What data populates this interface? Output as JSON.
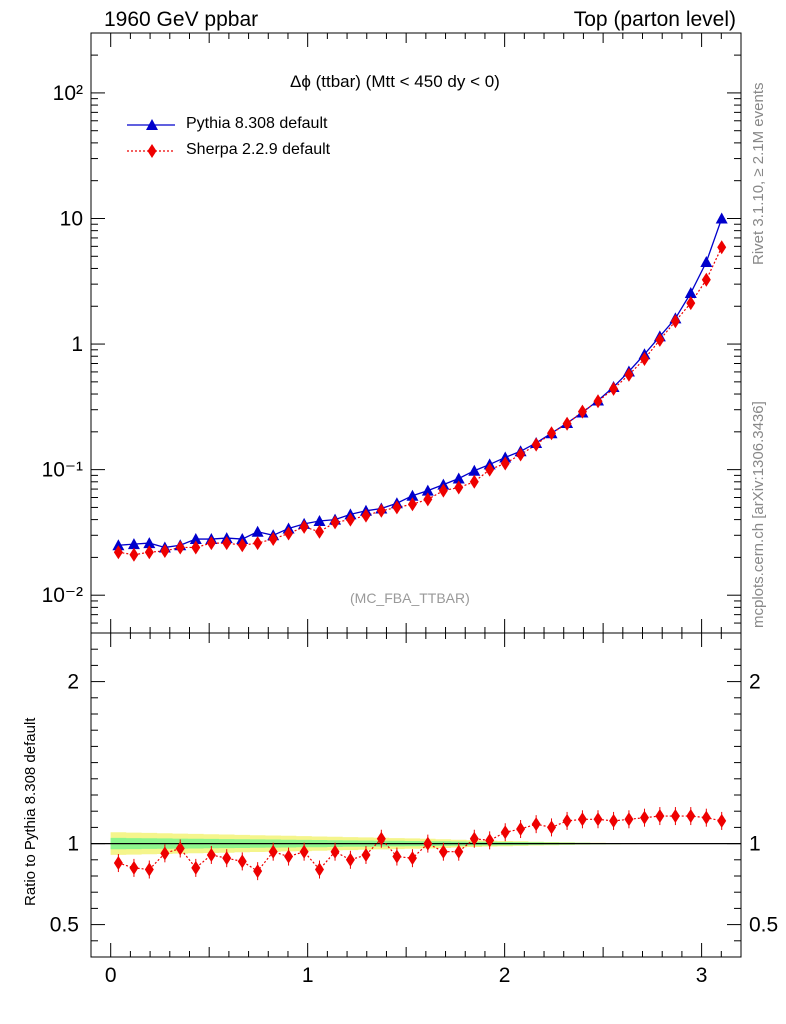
{
  "header": {
    "left_title": "1960 GeV ppbar",
    "right_title": "Top (parton level)"
  },
  "side_text": {
    "rivet": "Rivet 3.1.10, ≥ 2.1M events",
    "mcplots": "mcplots.cern.ch [arXiv:1306.3436]"
  },
  "colors": {
    "pythia": "#0000cc",
    "sherpa": "#ee0000",
    "band_inner": "#8cf58c",
    "band_outer": "#f5f58c"
  },
  "chart_data": [
    {
      "type": "line",
      "title": "Δϕ (ttbar) (Mtt < 450 dy < 0)",
      "watermark": "(MC_FBA_TTBAR)",
      "yscale": "log",
      "ylim": [
        0.005,
        300
      ],
      "xlim": [
        -0.1,
        3.2
      ],
      "yticks": [
        {
          "value": 0.01,
          "label": "10⁻²"
        },
        {
          "value": 0.1,
          "label": "10⁻¹"
        },
        {
          "value": 1,
          "label": "1"
        },
        {
          "value": 10,
          "label": "10"
        },
        {
          "value": 100,
          "label": "10²"
        }
      ],
      "legend": "top-left",
      "x": [
        0.039,
        0.118,
        0.196,
        0.275,
        0.353,
        0.432,
        0.511,
        0.589,
        0.668,
        0.746,
        0.825,
        0.903,
        0.982,
        1.06,
        1.139,
        1.217,
        1.296,
        1.374,
        1.453,
        1.532,
        1.61,
        1.689,
        1.767,
        1.846,
        1.924,
        2.003,
        2.081,
        2.16,
        2.238,
        2.317,
        2.395,
        2.474,
        2.553,
        2.631,
        2.71,
        2.788,
        2.867,
        2.945,
        3.024,
        3.102
      ],
      "series": [
        {
          "name": "Pythia 8.308 default",
          "marker": "triangle",
          "line": "solid",
          "values": [
            0.025,
            0.0255,
            0.026,
            0.024,
            0.025,
            0.028,
            0.028,
            0.0285,
            0.028,
            0.032,
            0.03,
            0.034,
            0.037,
            0.039,
            0.04,
            0.044,
            0.047,
            0.049,
            0.054,
            0.062,
            0.068,
            0.076,
            0.085,
            0.098,
            0.11,
            0.125,
            0.14,
            0.163,
            0.195,
            0.235,
            0.285,
            0.355,
            0.455,
            0.605,
            0.83,
            1.15,
            1.6,
            2.55,
            4.5,
            10.0
          ]
        },
        {
          "name": "Sherpa 2.2.9 default",
          "marker": "diamond",
          "line": "dotted",
          "values": [
            0.022,
            0.021,
            0.022,
            0.0225,
            0.024,
            0.024,
            0.026,
            0.026,
            0.025,
            0.026,
            0.028,
            0.031,
            0.035,
            0.032,
            0.038,
            0.04,
            0.043,
            0.047,
            0.05,
            0.053,
            0.058,
            0.068,
            0.072,
            0.08,
            0.1,
            0.112,
            0.132,
            0.158,
            0.195,
            0.232,
            0.29,
            0.35,
            0.44,
            0.57,
            0.76,
            1.08,
            1.52,
            2.12,
            3.25,
            5.9
          ]
        }
      ]
    },
    {
      "type": "line",
      "ylabel": "Ratio to Pythia 8.308 default",
      "xlim": [
        -0.1,
        3.2
      ],
      "ylim": [
        0.3,
        2.3
      ],
      "yticks": [
        {
          "value": 0.5,
          "label": "0.5"
        },
        {
          "value": 1,
          "label": "1"
        },
        {
          "value": 2,
          "label": "2"
        }
      ],
      "xticks": [
        {
          "value": 0,
          "label": "0"
        },
        {
          "value": 1,
          "label": "1"
        },
        {
          "value": 2,
          "label": "2"
        },
        {
          "value": 3,
          "label": "3"
        }
      ],
      "x": [
        0.039,
        0.118,
        0.196,
        0.275,
        0.353,
        0.432,
        0.511,
        0.589,
        0.668,
        0.746,
        0.825,
        0.903,
        0.982,
        1.06,
        1.139,
        1.217,
        1.296,
        1.374,
        1.453,
        1.532,
        1.61,
        1.689,
        1.767,
        1.846,
        1.924,
        2.003,
        2.081,
        2.16,
        2.238,
        2.317,
        2.395,
        2.474,
        2.553,
        2.631,
        2.71,
        2.788,
        2.867,
        2.945,
        3.024,
        3.102
      ],
      "series": [
        {
          "name": "Sherpa 2.2.9 default",
          "values": [
            0.88,
            0.85,
            0.84,
            0.94,
            0.97,
            0.85,
            0.93,
            0.91,
            0.89,
            0.83,
            0.95,
            0.92,
            0.95,
            0.84,
            0.95,
            0.9,
            0.93,
            1.03,
            0.92,
            0.91,
            1.0,
            0.95,
            0.95,
            1.03,
            1.02,
            1.07,
            1.09,
            1.12,
            1.1,
            1.14,
            1.15,
            1.15,
            1.14,
            1.15,
            1.16,
            1.17,
            1.17,
            1.17,
            1.16,
            1.14
          ]
        }
      ],
      "band_inner_halfwidth": [
        0.035,
        0.034,
        0.033,
        0.032,
        0.031,
        0.03,
        0.029,
        0.028,
        0.027,
        0.026,
        0.025,
        0.024,
        0.023,
        0.022,
        0.021,
        0.02,
        0.019,
        0.018,
        0.017,
        0.016,
        0.015,
        0.014,
        0.013,
        0.012,
        0.011,
        0.01,
        0.009,
        0.008,
        0.007,
        0.006,
        0.005,
        0.004,
        0.003,
        0.002,
        0.002,
        0.001,
        0.001,
        0.001,
        0.001,
        0.001
      ],
      "band_outer_halfwidth": [
        0.07,
        0.068,
        0.066,
        0.064,
        0.062,
        0.06,
        0.058,
        0.056,
        0.054,
        0.052,
        0.05,
        0.048,
        0.046,
        0.044,
        0.042,
        0.04,
        0.038,
        0.036,
        0.034,
        0.032,
        0.03,
        0.027,
        0.024,
        0.021,
        0.018,
        0.016,
        0.014,
        0.012,
        0.01,
        0.008,
        0.006,
        0.005,
        0.004,
        0.003,
        0.002,
        0.002,
        0.001,
        0.001,
        0.001,
        0.001
      ]
    }
  ]
}
